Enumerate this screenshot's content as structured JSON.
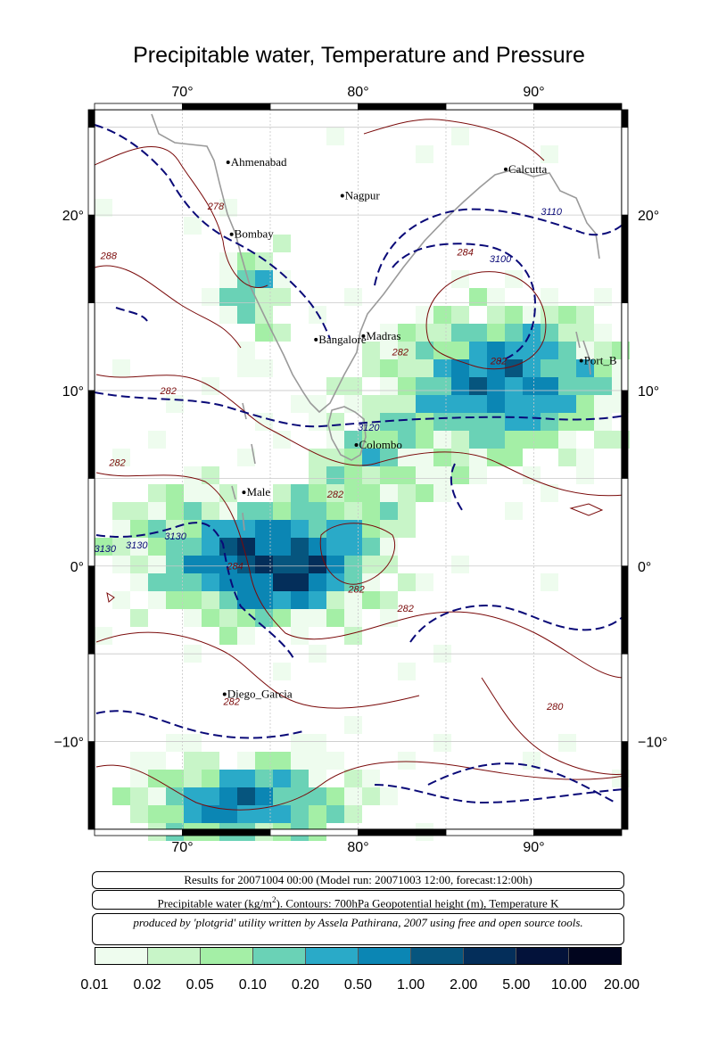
{
  "title": "Precipitable water, Temperature and Pressure",
  "map": {
    "lon_range": [
      65,
      95
    ],
    "lat_range": [
      -15,
      26
    ],
    "lon_ticks": [
      70,
      80,
      90
    ],
    "lat_ticks": [
      20,
      10,
      0,
      -10
    ],
    "lon_tick_labels": [
      "70°",
      "80°",
      "90°"
    ],
    "lat_tick_labels": [
      "20°",
      "10°",
      "0°",
      "−10°"
    ],
    "grid": true,
    "cities": [
      {
        "name": "Ahmenabad",
        "lon": 72.6,
        "lat": 23.0
      },
      {
        "name": "Calcutta",
        "lon": 88.4,
        "lat": 22.6
      },
      {
        "name": "Nagpur",
        "lon": 79.1,
        "lat": 21.1
      },
      {
        "name": "Bombay",
        "lon": 72.8,
        "lat": 18.9
      },
      {
        "name": "Bangalore",
        "lon": 77.6,
        "lat": 12.9
      },
      {
        "name": "Madras",
        "lon": 80.3,
        "lat": 13.1
      },
      {
        "name": "Port_B",
        "lon": 92.7,
        "lat": 11.7
      },
      {
        "name": "Colombo",
        "lon": 79.9,
        "lat": 6.9
      },
      {
        "name": "Male",
        "lon": 73.5,
        "lat": 4.2
      },
      {
        "name": "Diego_Garcia",
        "lon": 72.4,
        "lat": -7.3
      }
    ],
    "contour_labels": [
      {
        "text": "278",
        "lon": 71.9,
        "lat": 20.3,
        "kind": "temperature"
      },
      {
        "text": "288",
        "lon": 65.8,
        "lat": 17.5,
        "kind": "temperature"
      },
      {
        "text": "284",
        "lon": 86.1,
        "lat": 17.7,
        "kind": "temperature"
      },
      {
        "text": "282",
        "lon": 82.4,
        "lat": 12.0,
        "kind": "temperature"
      },
      {
        "text": "282",
        "lon": 88.0,
        "lat": 11.5,
        "kind": "temperature"
      },
      {
        "text": "282",
        "lon": 69.2,
        "lat": 9.8,
        "kind": "temperature"
      },
      {
        "text": "282",
        "lon": 66.3,
        "lat": 5.7,
        "kind": "temperature"
      },
      {
        "text": "282",
        "lon": 78.7,
        "lat": 3.9,
        "kind": "temperature"
      },
      {
        "text": "284",
        "lon": 73.0,
        "lat": -0.2,
        "kind": "temperature"
      },
      {
        "text": "282",
        "lon": 79.9,
        "lat": -1.5,
        "kind": "temperature"
      },
      {
        "text": "282",
        "lon": 82.7,
        "lat": -2.6,
        "kind": "temperature"
      },
      {
        "text": "282",
        "lon": 72.8,
        "lat": -7.9,
        "kind": "temperature"
      },
      {
        "text": "280",
        "lon": 91.2,
        "lat": -8.2,
        "kind": "temperature"
      },
      {
        "text": "3110",
        "lon": 91.0,
        "lat": 20.0,
        "kind": "height"
      },
      {
        "text": "3100",
        "lon": 88.1,
        "lat": 17.3,
        "kind": "height"
      },
      {
        "text": "3120",
        "lon": 80.6,
        "lat": 7.7,
        "kind": "height"
      },
      {
        "text": "3130",
        "lon": 65.6,
        "lat": 0.8,
        "kind": "height"
      },
      {
        "text": "3130",
        "lon": 67.4,
        "lat": 1.0,
        "kind": "height"
      },
      {
        "text": "3130",
        "lon": 69.6,
        "lat": 1.5,
        "kind": "height"
      }
    ]
  },
  "info": {
    "line1": "Results for 20071004 00:00 (Model run: 20071003 12:00, forecast:12:00h)",
    "line2": "Precipitable water (kg/m²).  Contours: 700hPa Geopotential height (m), Temperature K",
    "line3": "produced by 'plotgrid' utility written by Assela Pathirana, 2007 using free and open source tools."
  },
  "legend": {
    "labels": [
      "0.01",
      "0.02",
      "0.05",
      "0.10",
      "0.20",
      "0.50",
      "1.00",
      "2.00",
      "5.00",
      "10.00",
      "20.00"
    ],
    "colors": [
      "#eefcee",
      "#c8f5c8",
      "#a4efa6",
      "#6ad2b6",
      "#2aaac8",
      "#0b86b4",
      "#06557e",
      "#042e5a",
      "#03123a",
      "#01051e"
    ]
  },
  "colors": {
    "temperature_contour": "#7a0a0a",
    "height_contour": "#0a0a78",
    "coastline": "#9a9a9a",
    "grid": "#c8c8c8"
  }
}
